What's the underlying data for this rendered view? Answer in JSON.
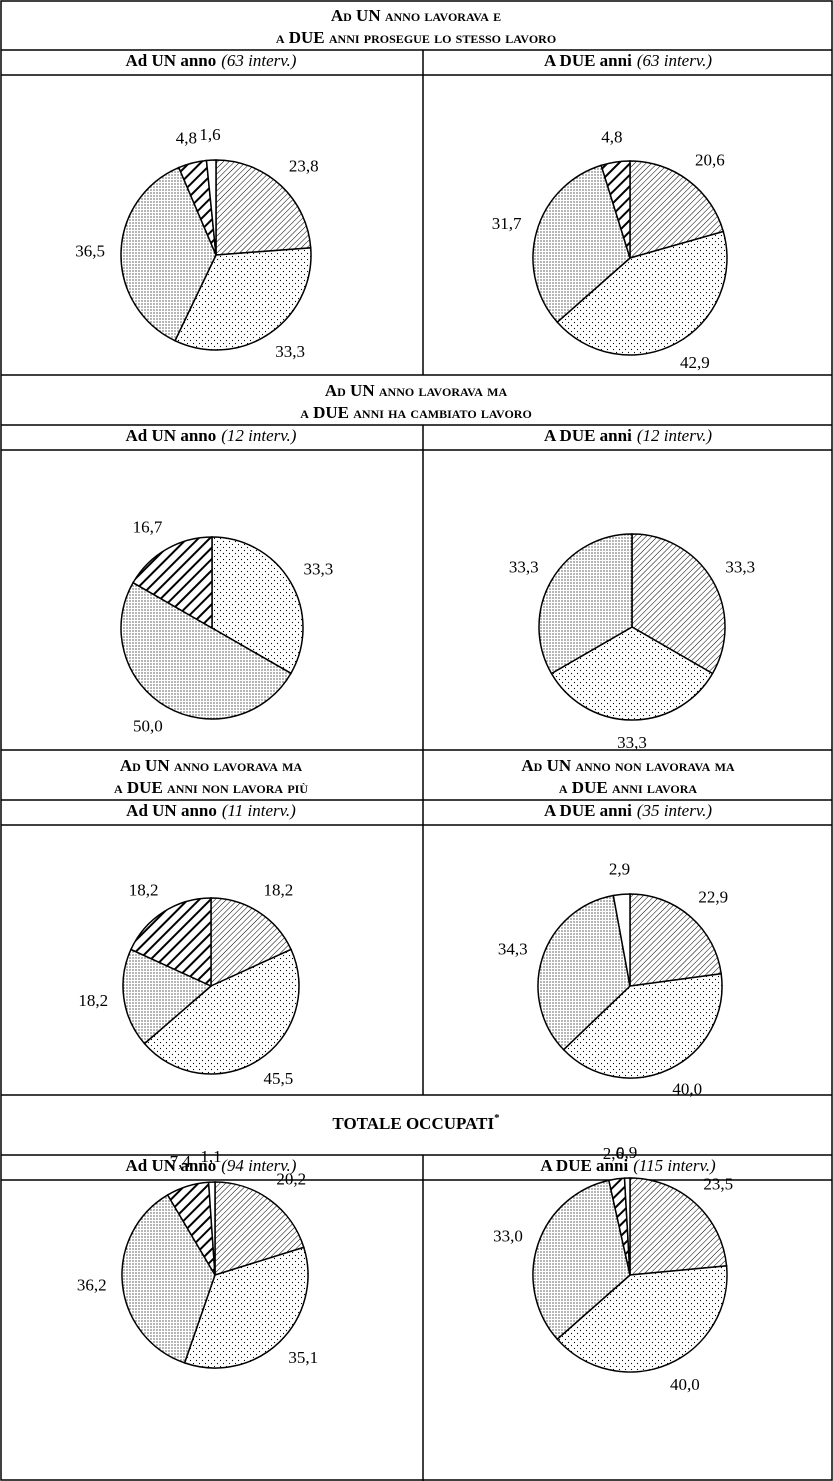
{
  "headers": [
    {
      "lines": [
        "Ad UN anno lavorava e",
        "a DUE anni prosegue lo stesso lavoro"
      ]
    },
    {
      "lines": [
        "Ad UN anno lavorava ma",
        "a DUE anni ha cambiato lavoro"
      ]
    },
    {
      "lines": [
        "Ad UN anno lavorava ma",
        "a DUE anni non lavora più"
      ]
    },
    {
      "lines": [
        "Ad UN anno non lavorava ma",
        "a DUE anni lavora"
      ]
    },
    {
      "lines": [
        "TOTALE OCCUPATI"
      ],
      "note_mark": "*"
    }
  ],
  "chart_data": [
    {
      "type": "pie",
      "title": "Ad UN anno",
      "subtitle": "(63 interv.)",
      "values": [
        23.8,
        33.3,
        36.5,
        4.8,
        1.6
      ],
      "value_labels": [
        "23,8",
        "33,3",
        "36,5",
        "4,8",
        "1,6"
      ],
      "patterns": [
        "hatch",
        "dots",
        "dense",
        "bold",
        "white"
      ]
    },
    {
      "type": "pie",
      "title": "A DUE anni",
      "subtitle": "(63 interv.)",
      "values": [
        20.6,
        42.9,
        31.7,
        4.8
      ],
      "value_labels": [
        "20,6",
        "42,9",
        "31,7",
        "4,8"
      ],
      "patterns": [
        "hatch",
        "dots",
        "dense",
        "bold"
      ]
    },
    {
      "type": "pie",
      "title": "Ad UN anno",
      "subtitle": "(12 interv.)",
      "values": [
        33.3,
        50.0,
        16.7
      ],
      "value_labels": [
        "33,3",
        "50,0",
        "16,7"
      ],
      "patterns": [
        "dots",
        "dense",
        "bold"
      ]
    },
    {
      "type": "pie",
      "title": "A DUE anni",
      "subtitle": "(12 interv.)",
      "values": [
        33.3,
        33.3,
        33.3
      ],
      "value_labels": [
        "33,3",
        "33,3",
        "33,3"
      ],
      "patterns": [
        "hatch",
        "dots",
        "dense"
      ]
    },
    {
      "type": "pie",
      "title": "Ad UN anno",
      "subtitle": "(11 interv.)",
      "values": [
        18.2,
        45.5,
        18.2,
        18.2
      ],
      "value_labels": [
        "18,2",
        "45,5",
        "18,2",
        "18,2"
      ],
      "patterns": [
        "hatch",
        "dots",
        "dense",
        "bold"
      ]
    },
    {
      "type": "pie",
      "title": "A DUE anni",
      "subtitle": "(35 interv.)",
      "values": [
        22.9,
        40.0,
        34.3,
        2.9
      ],
      "value_labels": [
        "22,9",
        "40,0",
        "34,3",
        "2,9"
      ],
      "patterns": [
        "hatch",
        "dots",
        "dense",
        "white"
      ]
    },
    {
      "type": "pie",
      "title": "Ad UN anno",
      "subtitle": "(94 interv.)",
      "values": [
        20.2,
        35.1,
        36.2,
        7.4,
        1.1
      ],
      "value_labels": [
        "20,2",
        "35,1",
        "36,2",
        "7,4",
        "1,1"
      ],
      "patterns": [
        "hatch",
        "dots",
        "dense",
        "bold",
        "white"
      ]
    },
    {
      "type": "pie",
      "title": "A DUE anni",
      "subtitle": "(115 interv.)",
      "values": [
        23.5,
        40.0,
        33.0,
        2.6,
        0.9
      ],
      "value_labels": [
        "23,5",
        "40,0",
        "33,0",
        "2,6",
        "0,9"
      ],
      "patterns": [
        "hatch",
        "dots",
        "dense",
        "bold",
        "white"
      ]
    }
  ]
}
